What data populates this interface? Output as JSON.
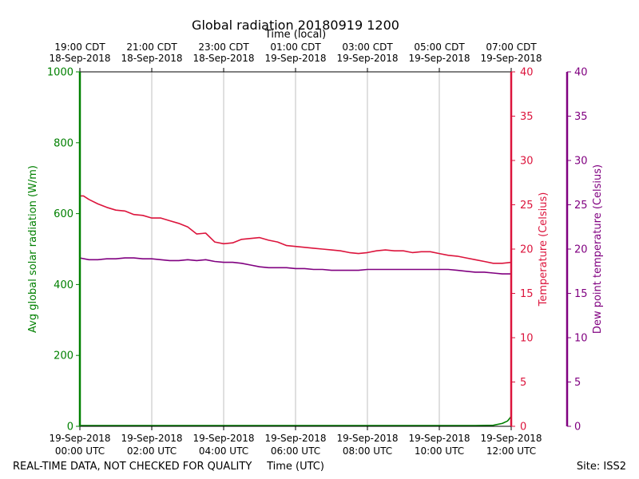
{
  "chart_data": {
    "type": "line",
    "title": "Global radiation 20180919 1200",
    "x_top_label": "Time (local)",
    "xlabel": "Time (UTC)",
    "ylabel_left": "Avg global solar radiation (W/m)",
    "ylabel_right_1": "Temperature (Celsius)",
    "ylabel_right_2": "Dew point temperature (Celsius)",
    "footer_left": "REAL-TIME DATA, NOT CHECKED FOR QUALITY",
    "footer_right": "Site: ISS2",
    "x_range_hours_utc": [
      0,
      12
    ],
    "bottom_ticks": [
      {
        "hour": 0,
        "time": "00:00 UTC",
        "date": "19-Sep-2018"
      },
      {
        "hour": 2,
        "time": "02:00 UTC",
        "date": "19-Sep-2018"
      },
      {
        "hour": 4,
        "time": "04:00 UTC",
        "date": "19-Sep-2018"
      },
      {
        "hour": 6,
        "time": "06:00 UTC",
        "date": "19-Sep-2018"
      },
      {
        "hour": 8,
        "time": "08:00 UTC",
        "date": "19-Sep-2018"
      },
      {
        "hour": 10,
        "time": "10:00 UTC",
        "date": "19-Sep-2018"
      },
      {
        "hour": 12,
        "time": "12:00 UTC",
        "date": "19-Sep-2018"
      }
    ],
    "top_ticks": [
      {
        "hour": 0,
        "time": "19:00 CDT",
        "date": "18-Sep-2018"
      },
      {
        "hour": 2,
        "time": "21:00 CDT",
        "date": "18-Sep-2018"
      },
      {
        "hour": 4,
        "time": "23:00 CDT",
        "date": "18-Sep-2018"
      },
      {
        "hour": 6,
        "time": "01:00 CDT",
        "date": "19-Sep-2018"
      },
      {
        "hour": 8,
        "time": "03:00 CDT",
        "date": "19-Sep-2018"
      },
      {
        "hour": 10,
        "time": "05:00 CDT",
        "date": "19-Sep-2018"
      },
      {
        "hour": 12,
        "time": "07:00 CDT",
        "date": "19-Sep-2018"
      }
    ],
    "y_left": {
      "min": 0,
      "max": 1000,
      "ticks": [
        0,
        200,
        400,
        600,
        800,
        1000
      ],
      "color": "#008000"
    },
    "y_temp": {
      "min": 0,
      "max": 40,
      "ticks": [
        0,
        5,
        10,
        15,
        20,
        25,
        30,
        35,
        40
      ],
      "color": "#dc143c"
    },
    "y_dew": {
      "min": 0,
      "max": 40,
      "ticks": [
        0,
        5,
        10,
        15,
        20,
        25,
        30,
        35,
        40
      ],
      "color": "#800080"
    },
    "grid": "vertical",
    "series": [
      {
        "color": "#008000",
        "axis": "left",
        "x_hours": [
          0,
          1,
          2,
          4,
          6,
          8,
          10,
          11,
          11.5,
          11.75,
          11.9,
          12.0
        ],
        "values": [
          2,
          2,
          2,
          2,
          2,
          2,
          2,
          2,
          3,
          8,
          15,
          28
        ]
      },
      {
        "color": "#dc143c",
        "axis": "temp",
        "x_hours": [
          0,
          0.1,
          0.25,
          0.5,
          0.75,
          1.0,
          1.25,
          1.5,
          1.75,
          2.0,
          2.25,
          2.5,
          2.75,
          3.0,
          3.25,
          3.5,
          3.75,
          4.0,
          4.25,
          4.5,
          4.75,
          5.0,
          5.25,
          5.5,
          5.75,
          6.0,
          6.25,
          6.5,
          6.75,
          7.0,
          7.25,
          7.5,
          7.75,
          8.0,
          8.25,
          8.5,
          8.75,
          9.0,
          9.25,
          9.5,
          9.75,
          10.0,
          10.25,
          10.5,
          10.75,
          11.0,
          11.25,
          11.5,
          11.75,
          12.0
        ],
        "values": [
          26.0,
          26.0,
          25.6,
          25.1,
          24.7,
          24.4,
          24.3,
          23.9,
          23.8,
          23.5,
          23.5,
          23.2,
          22.9,
          22.5,
          21.7,
          21.8,
          20.8,
          20.6,
          20.7,
          21.1,
          21.2,
          21.3,
          21.0,
          20.8,
          20.4,
          20.3,
          20.2,
          20.1,
          20.0,
          19.9,
          19.8,
          19.6,
          19.5,
          19.6,
          19.8,
          19.9,
          19.8,
          19.8,
          19.6,
          19.7,
          19.7,
          19.5,
          19.3,
          19.2,
          19.0,
          18.8,
          18.6,
          18.4,
          18.4,
          18.5
        ]
      },
      {
        "color": "#800080",
        "axis": "dew",
        "x_hours": [
          0,
          0.25,
          0.5,
          0.75,
          1.0,
          1.25,
          1.5,
          1.75,
          2.0,
          2.25,
          2.5,
          2.75,
          3.0,
          3.25,
          3.5,
          3.75,
          4.0,
          4.25,
          4.5,
          4.75,
          5.0,
          5.25,
          5.5,
          5.75,
          6.0,
          6.25,
          6.5,
          6.75,
          7.0,
          7.25,
          7.5,
          7.75,
          8.0,
          8.25,
          8.5,
          8.75,
          9.0,
          9.25,
          9.5,
          9.75,
          10.0,
          10.25,
          10.5,
          10.75,
          11.0,
          11.25,
          11.5,
          11.75,
          12.0
        ],
        "values": [
          19.0,
          18.8,
          18.8,
          18.9,
          18.9,
          19.0,
          19.0,
          18.9,
          18.9,
          18.8,
          18.7,
          18.7,
          18.8,
          18.7,
          18.8,
          18.6,
          18.5,
          18.5,
          18.4,
          18.2,
          18.0,
          17.9,
          17.9,
          17.9,
          17.8,
          17.8,
          17.7,
          17.7,
          17.6,
          17.6,
          17.6,
          17.6,
          17.7,
          17.7,
          17.7,
          17.7,
          17.7,
          17.7,
          17.7,
          17.7,
          17.7,
          17.7,
          17.6,
          17.5,
          17.4,
          17.4,
          17.3,
          17.2,
          17.2
        ]
      }
    ]
  }
}
